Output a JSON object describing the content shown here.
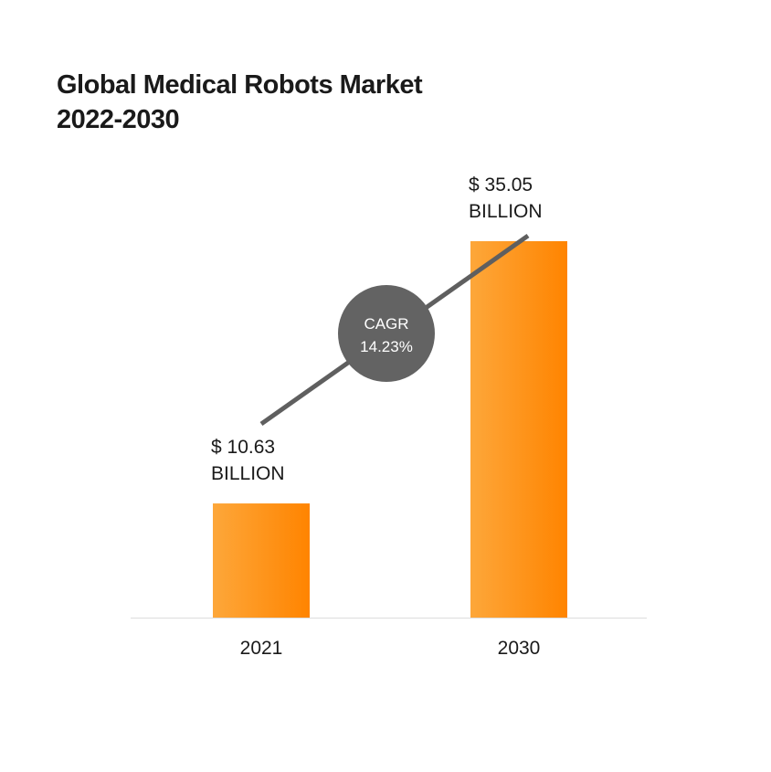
{
  "chart_data": {
    "type": "bar",
    "title_lines": [
      "Global Medical Robots Market",
      "2022-2030"
    ],
    "categories": [
      "2021",
      "2030"
    ],
    "values": [
      10.63,
      35.05
    ],
    "value_labels": [
      [
        "$ 10.63",
        "BILLION"
      ],
      [
        "$ 35.05",
        "BILLION"
      ]
    ],
    "unit": "BILLION",
    "xlabel": "",
    "ylabel": "",
    "grid": false,
    "annotation": {
      "lines": [
        "CAGR",
        "14.23%"
      ]
    },
    "colors": {
      "bar_light": "#FDA73A",
      "bar_dark": "#FF8400",
      "trend_line": "#5F5F5F",
      "cagr_circle": "#636363",
      "axis": "#dddddd"
    }
  }
}
